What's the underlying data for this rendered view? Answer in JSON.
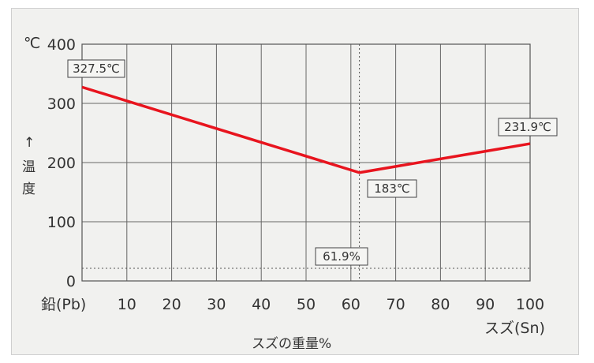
{
  "chart_data": {
    "type": "line",
    "x": [
      0,
      61.9,
      100
    ],
    "series": [
      {
        "values": [
          327.5,
          183,
          231.9
        ]
      }
    ],
    "xlim": [
      0,
      100
    ],
    "ylim": [
      0,
      400
    ],
    "x_ticks": [
      "10",
      "20",
      "30",
      "40",
      "50",
      "60",
      "70",
      "80",
      "90",
      "100"
    ],
    "y_ticks": [
      "400",
      "300",
      "200",
      "100",
      "0"
    ],
    "y_unit": "℃",
    "y_label": "温度",
    "y_arrow": "↑",
    "x_left_label": "鉛(Pb)",
    "x_right_label": "スズ(Sn)",
    "x_title": "スズの重量%",
    "annotations": {
      "pb_melt": "327.5℃",
      "sn_melt": "231.9℃",
      "eutectic_temp": "183℃",
      "eutectic_comp": "61.9%"
    },
    "grid": true,
    "line_color": "#e8141e"
  }
}
